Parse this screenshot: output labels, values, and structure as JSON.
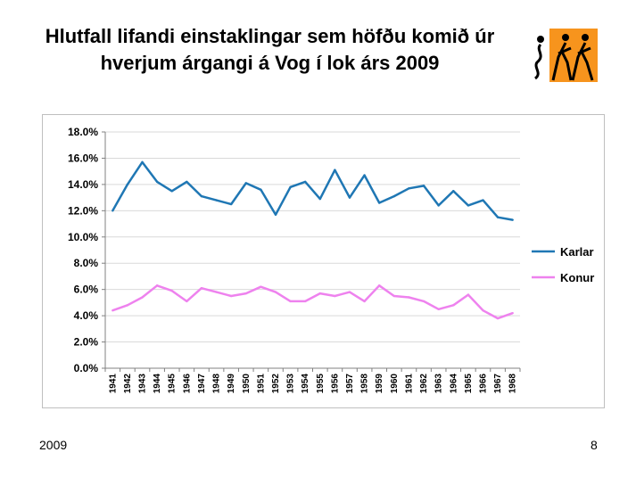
{
  "slide": {
    "title_line1": "Hlutfall lifandi einstaklingar sem höfðu komið úr",
    "title_line2": "hverjum árgangi á Vog í lok árs 2009",
    "footer_left": "2009",
    "page_number": "8"
  },
  "colors": {
    "karlar": "#1f77b4",
    "konur": "#ee82ee",
    "logo_bg": "#f7941d"
  },
  "logo": {
    "icon": "three-figures-logo"
  },
  "chart_data": {
    "type": "line",
    "title": "",
    "xlabel": "",
    "ylabel": "",
    "categories": [
      "1941",
      "1942",
      "1943",
      "1944",
      "1945",
      "1946",
      "1947",
      "1948",
      "1949",
      "1950",
      "1951",
      "1952",
      "1953",
      "1954",
      "1955",
      "1956",
      "1957",
      "1958",
      "1959",
      "1960",
      "1961",
      "1962",
      "1963",
      "1964",
      "1965",
      "1966",
      "1967",
      "1968"
    ],
    "series": [
      {
        "name": "Karlar",
        "color": "#1f77b4",
        "values": [
          12.0,
          14.0,
          15.7,
          14.2,
          13.5,
          14.2,
          13.1,
          12.8,
          12.5,
          14.1,
          13.6,
          11.7,
          13.8,
          14.2,
          12.9,
          15.1,
          13.0,
          14.7,
          12.6,
          13.1,
          13.7,
          13.9,
          12.4,
          13.5,
          12.4,
          12.8,
          11.5,
          11.3
        ]
      },
      {
        "name": "Konur",
        "color": "#ee82ee",
        "values": [
          4.4,
          4.8,
          5.4,
          6.3,
          5.9,
          5.1,
          6.1,
          5.8,
          5.5,
          5.7,
          6.2,
          5.8,
          5.1,
          5.1,
          5.7,
          5.5,
          5.8,
          5.1,
          6.3,
          5.5,
          5.4,
          5.1,
          4.5,
          4.8,
          5.6,
          4.4,
          3.8,
          4.2
        ]
      }
    ],
    "ylim": [
      0,
      18
    ],
    "yticks": [
      "0.0%",
      "2.0%",
      "4.0%",
      "6.0%",
      "8.0%",
      "10.0%",
      "12.0%",
      "14.0%",
      "16.0%",
      "18.0%"
    ],
    "grid": true,
    "legend_position": "right"
  }
}
